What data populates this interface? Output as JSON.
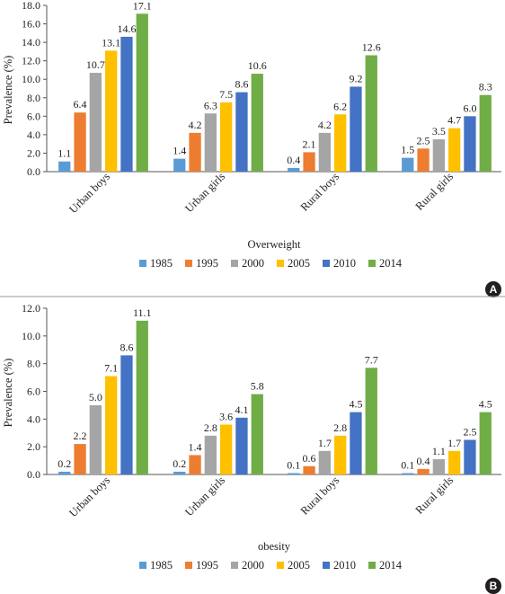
{
  "chart_data": [
    {
      "type": "bar",
      "panel": "A",
      "categories": [
        "Urban boys",
        "Urban girls",
        "Rural boys",
        "Rural girls"
      ],
      "series": [
        {
          "name": "1985",
          "values": [
            1.1,
            1.4,
            0.4,
            1.5
          ]
        },
        {
          "name": "1995",
          "values": [
            6.4,
            4.2,
            2.1,
            2.5
          ]
        },
        {
          "name": "2000",
          "values": [
            10.7,
            6.3,
            4.2,
            3.5
          ]
        },
        {
          "name": "2005",
          "values": [
            13.1,
            7.5,
            6.2,
            4.7
          ]
        },
        {
          "name": "2010",
          "values": [
            14.6,
            8.6,
            9.2,
            6.0
          ]
        },
        {
          "name": "2014",
          "values": [
            17.1,
            10.6,
            12.6,
            8.3
          ]
        }
      ],
      "value_labels": [
        [
          "1.1",
          "1.4",
          "0.4",
          "1.5"
        ],
        [
          "6.4",
          "4.2",
          "2.1",
          "2.5"
        ],
        [
          "10.7",
          "6.3",
          "4.2",
          "3.5"
        ],
        [
          "13.1",
          "7.5",
          "6.2",
          "4.7"
        ],
        [
          "14.6",
          "8.6",
          "9.2",
          "6.0"
        ],
        [
          "17.1",
          "10.6",
          "12.6",
          "8.3"
        ]
      ],
      "yticks": [
        "0.0",
        "2.0",
        "4.0",
        "6.0",
        "8.0",
        "10.0",
        "12.0",
        "14.0",
        "16.0",
        "18.0"
      ],
      "ylim": [
        0,
        18
      ],
      "xlabel": "Overweight",
      "ylabel": "Prevalence (%)",
      "legend_position": "bottom"
    },
    {
      "type": "bar",
      "panel": "B",
      "categories": [
        "Urban boys",
        "Urban girls",
        "Rural boys",
        "Rural girls"
      ],
      "series": [
        {
          "name": "1985",
          "values": [
            0.2,
            0.2,
            0.1,
            0.1
          ]
        },
        {
          "name": "1995",
          "values": [
            2.2,
            1.4,
            0.6,
            0.4
          ]
        },
        {
          "name": "2000",
          "values": [
            5.0,
            2.8,
            1.7,
            1.1
          ]
        },
        {
          "name": "2005",
          "values": [
            7.1,
            3.6,
            2.8,
            1.7
          ]
        },
        {
          "name": "2010",
          "values": [
            8.6,
            4.1,
            4.5,
            2.5
          ]
        },
        {
          "name": "2014",
          "values": [
            11.1,
            5.8,
            7.7,
            4.5
          ]
        }
      ],
      "value_labels": [
        [
          "0.2",
          "0.2",
          "0.1",
          "0.1"
        ],
        [
          "2.2",
          "1.4",
          "0.6",
          "0.4"
        ],
        [
          "5.0",
          "2.8",
          "1.7",
          "1.1"
        ],
        [
          "7.1",
          "3.6",
          "2.8",
          "1.7"
        ],
        [
          "8.6",
          "4.1",
          "4.5",
          "2.5"
        ],
        [
          "11.1",
          "5.8",
          "7.7",
          "4.5"
        ]
      ],
      "yticks": [
        "0.0",
        "2.0",
        "4.0",
        "6.0",
        "8.0",
        "10.0",
        "12.0"
      ],
      "ylim": [
        0,
        12
      ],
      "xlabel": "obesity",
      "ylabel": "Prevalence (%)",
      "legend_position": "bottom"
    }
  ],
  "series_colors": [
    "#5b9bd5",
    "#ed7d31",
    "#a5a5a5",
    "#ffc000",
    "#4472c4",
    "#70ad47"
  ],
  "axis_color": "#555555",
  "badge_color": "#231f20"
}
